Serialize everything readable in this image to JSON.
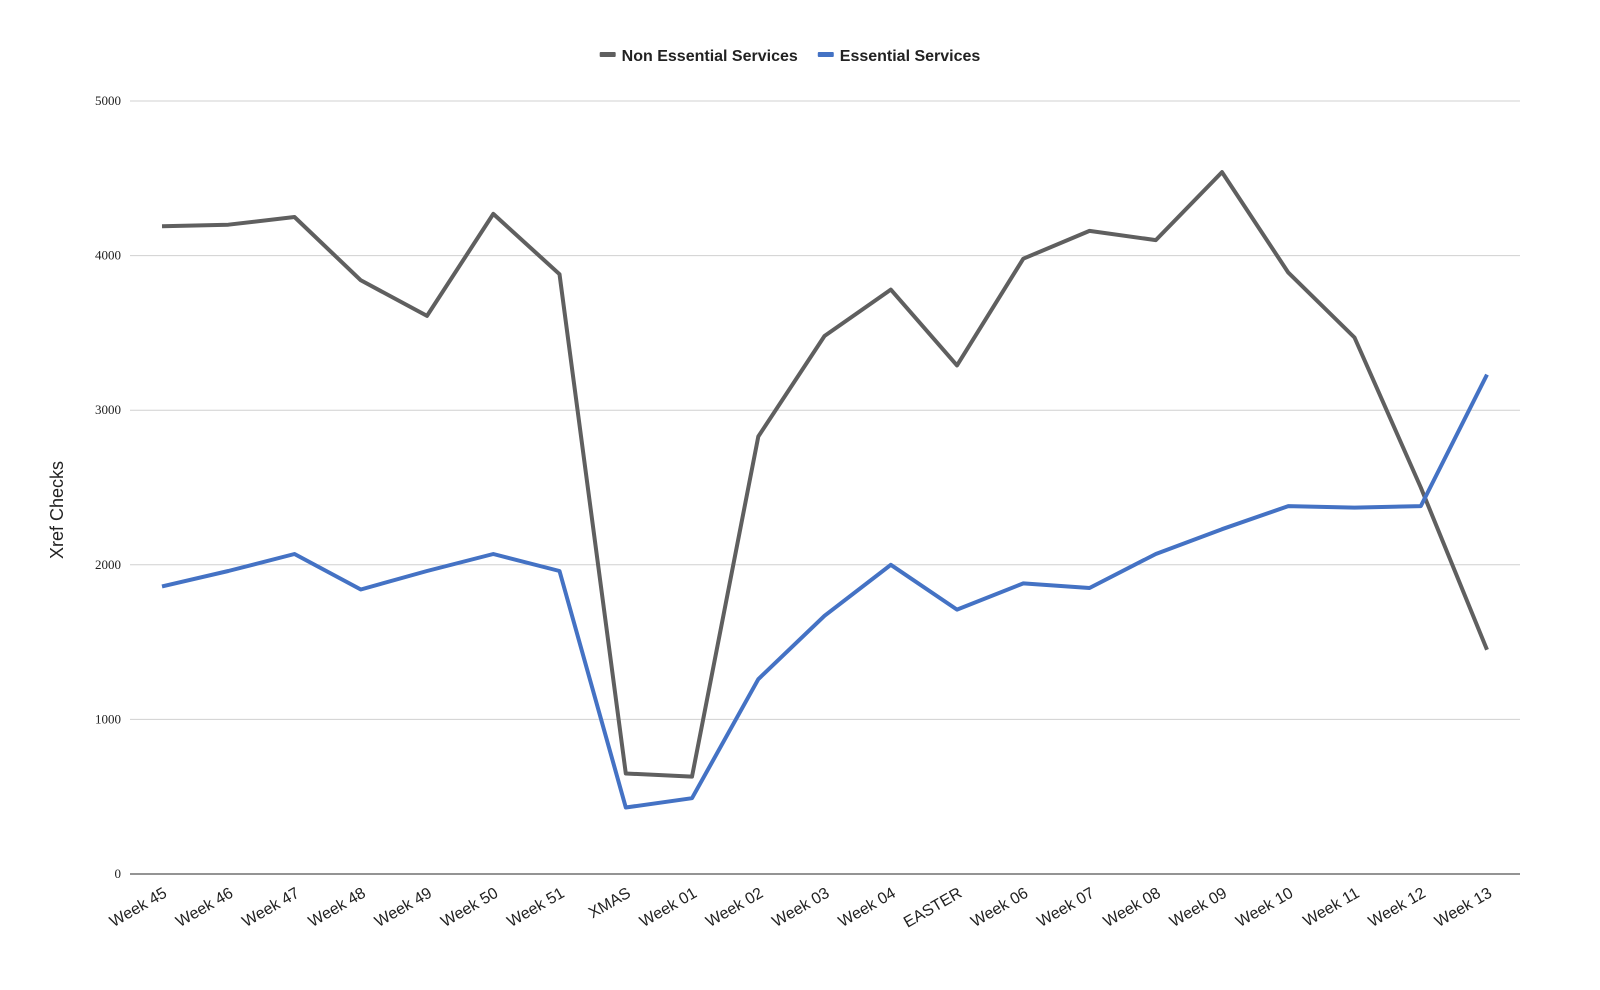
{
  "chart_data": {
    "type": "line",
    "title": "",
    "xlabel": "",
    "ylabel": "Xref Checks",
    "ylim": [
      0,
      5000
    ],
    "yticks": [
      0,
      1000,
      2000,
      3000,
      4000,
      5000
    ],
    "grid": true,
    "legend_position": "top-center",
    "categories": [
      "Week 45",
      "Week 46",
      "Week 47",
      "Week 48",
      "Week 49",
      "Week 50",
      "Week 51",
      "XMAS",
      "Week 01",
      "Week 02",
      "Week 03",
      "Week 04",
      "EASTER",
      "Week 06",
      "Week 07",
      "Week 08",
      "Week 09",
      "Week 10",
      "Week 11",
      "Week 12",
      "Week 13"
    ],
    "series": [
      {
        "name": "Non Essential Services",
        "color": "#5f5f5f",
        "values": [
          4190,
          4200,
          4250,
          3840,
          3610,
          4270,
          3880,
          650,
          630,
          2830,
          3480,
          3780,
          3290,
          3980,
          4160,
          4100,
          4540,
          3890,
          3470,
          2500,
          1450
        ]
      },
      {
        "name": "Essential Services",
        "color": "#4472c4",
        "values": [
          1860,
          1960,
          2070,
          1840,
          1960,
          2070,
          1960,
          430,
          490,
          1260,
          1670,
          2000,
          1710,
          1880,
          1850,
          2070,
          2230,
          2380,
          2370,
          2380,
          3230
        ]
      }
    ]
  }
}
